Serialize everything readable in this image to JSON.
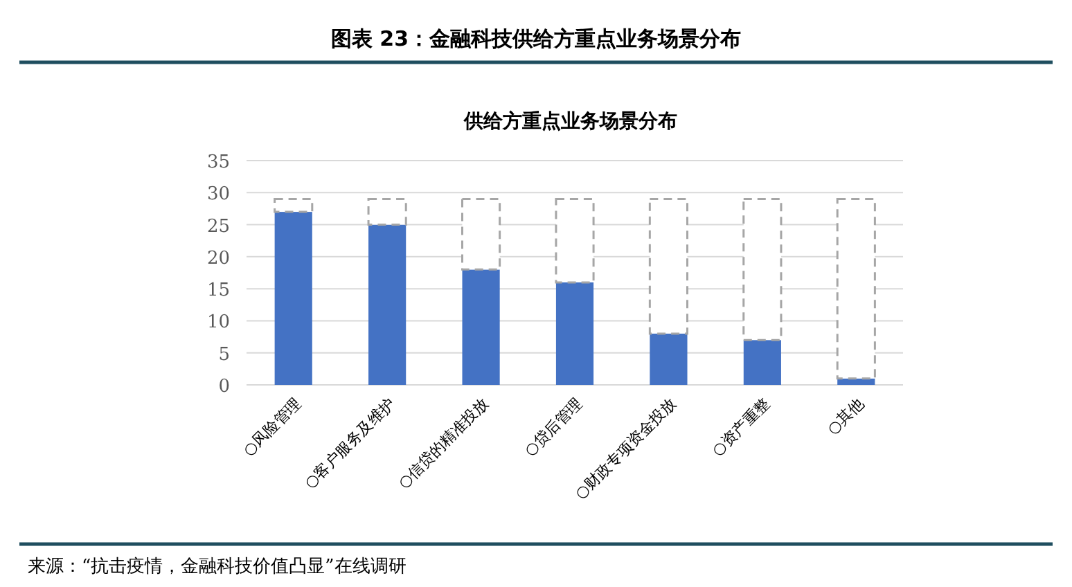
{
  "chart_data": {
    "type": "bar",
    "title": "图表 23：金融科技供给方重点业务场景分布",
    "subtitle": "供给方重点业务场景分布",
    "annotations": [
      "来源：“抗击疫情，金融科技价值凸显”在线调研"
    ],
    "categories": [
      "○风险管理",
      "○客户服务及维护",
      "○信贷的精准投放",
      "○贷后管理",
      "○财政专项资金投放",
      "○资产重整",
      "○其他"
    ],
    "series": [
      {
        "color": "#4472c4",
        "values": [
          27,
          25,
          18,
          16,
          8,
          7,
          1
        ]
      },
      {
        "color": "#ffffff",
        "line_style": "dashed",
        "values": [
          2,
          4,
          11,
          13,
          21,
          22,
          28
        ]
      }
    ],
    "stacked": true,
    "ylim": [
      0,
      35
    ],
    "yticks": [
      0,
      5,
      10,
      15,
      20,
      25,
      30,
      35
    ],
    "grid": "y"
  }
}
